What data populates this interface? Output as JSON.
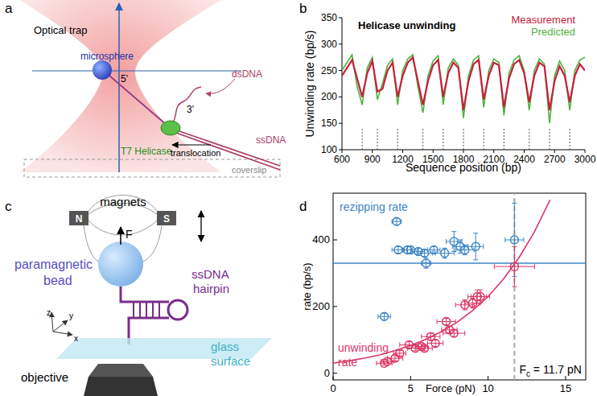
{
  "panel_labels": [
    "a",
    "b",
    "c",
    "d"
  ],
  "diagrams": {
    "a": {
      "optical_trap": "Optical trap",
      "microsphere": "microsphere",
      "five_prime": "5'",
      "three_prime": "3'",
      "dsdna": "dsDNA",
      "ssdna": "ssDNA",
      "helicase": "T7 Helicase",
      "translocation": "translocation",
      "coverslip": "coverslip"
    },
    "c": {
      "magnets": "magnets",
      "north": "N",
      "south": "S",
      "force": "F",
      "bead": [
        "paramagnetic",
        "bead"
      ],
      "hairpin": [
        "ssDNA",
        "hairpin"
      ],
      "axes": [
        "z",
        "y",
        "x"
      ],
      "surface": [
        "glass",
        "surface"
      ],
      "objective": "objective"
    }
  },
  "chart_data": [
    {
      "type": "line",
      "title": "Helicase unwinding",
      "x_label": "Sequence position (bp)",
      "y_label": "Unwinding rate (bp/s)",
      "x": [
        600,
        650,
        700,
        750,
        800,
        850,
        900,
        950,
        1000,
        1050,
        1100,
        1150,
        1200,
        1250,
        1300,
        1350,
        1400,
        1450,
        1500,
        1550,
        1600,
        1650,
        1700,
        1750,
        1800,
        1850,
        1900,
        1950,
        2000,
        2050,
        2100,
        2150,
        2200,
        2250,
        2300,
        2350,
        2400,
        2450,
        2500,
        2550,
        2600,
        2650,
        2700,
        2750,
        2800,
        2850,
        2900,
        2950,
        3000
      ],
      "series": [
        {
          "name": "Measurement",
          "color": "#c8203c",
          "values": [
            240,
            255,
            270,
            235,
            200,
            245,
            268,
            210,
            215,
            250,
            265,
            200,
            240,
            265,
            275,
            230,
            185,
            230,
            260,
            270,
            200,
            245,
            265,
            255,
            175,
            230,
            262,
            270,
            195,
            240,
            265,
            260,
            180,
            235,
            262,
            270,
            245,
            190,
            240,
            265,
            258,
            175,
            230,
            258,
            240,
            190,
            240,
            262,
            250
          ]
        },
        {
          "name": "Predicted",
          "color": "#4db33d",
          "values": [
            250,
            265,
            280,
            220,
            185,
            255,
            275,
            195,
            225,
            260,
            272,
            185,
            250,
            272,
            280,
            220,
            170,
            240,
            268,
            278,
            185,
            255,
            272,
            260,
            160,
            240,
            270,
            278,
            180,
            250,
            272,
            265,
            165,
            245,
            270,
            278,
            250,
            175,
            250,
            272,
            262,
            150,
            240,
            268,
            250,
            175,
            250,
            270,
            275
          ]
        }
      ],
      "dip_markers": [
        800,
        950,
        1150,
        1400,
        1600,
        1800,
        2000,
        2200,
        2450,
        2650,
        2850
      ],
      "xlim": [
        600,
        3000
      ],
      "ylim": [
        100,
        350
      ],
      "xticks": [
        600,
        900,
        1200,
        1500,
        1800,
        2100,
        2400,
        2700,
        3000
      ],
      "yticks": [
        100,
        150,
        200,
        250,
        300,
        350
      ],
      "legend": "top right",
      "grid": false
    },
    {
      "type": "scatter",
      "x_label": "Force (pN)",
      "y_label": "rate (bp/s)",
      "series": [
        {
          "name": "rezipping rate",
          "color": "#3d86c6",
          "marker": "circle",
          "x": [
            3.3,
            4.1,
            4.2,
            4.8,
            5.0,
            5.5,
            5.9,
            6.0,
            6.5,
            7.2,
            7.8,
            8.2,
            8.5,
            9.2,
            11.7
          ],
          "values": [
            170,
            455,
            370,
            370,
            370,
            365,
            360,
            330,
            370,
            360,
            395,
            380,
            370,
            380,
            400
          ],
          "xerr": [
            0.4,
            0.3,
            0.4,
            0.3,
            0.5,
            0.4,
            0.5,
            0.3,
            0.4,
            0.6,
            0.5,
            0.5,
            0.6,
            0.5,
            0.6
          ],
          "yerr": [
            10,
            10,
            10,
            10,
            10,
            10,
            10,
            15,
            10,
            15,
            30,
            20,
            15,
            40,
            110
          ]
        },
        {
          "name": "unwinding rate",
          "color": "#dc3564",
          "marker": "circle",
          "x": [
            3.3,
            3.5,
            4.0,
            4.3,
            4.9,
            5.3,
            5.7,
            5.9,
            6.3,
            6.6,
            7.3,
            7.5,
            7.8,
            8.5,
            9.0,
            9.3,
            9.5,
            11.7
          ],
          "values": [
            30,
            35,
            45,
            60,
            85,
            75,
            80,
            75,
            110,
            90,
            155,
            130,
            120,
            205,
            210,
            230,
            230,
            320
          ],
          "xerr": [
            0.5,
            0.4,
            0.5,
            0.4,
            0.6,
            0.5,
            0.4,
            0.5,
            0.6,
            0.5,
            0.6,
            0.5,
            0.7,
            0.6,
            0.5,
            0.6,
            0.6,
            1.3
          ],
          "yerr": [
            5,
            5,
            8,
            8,
            10,
            8,
            8,
            8,
            10,
            10,
            10,
            10,
            10,
            15,
            15,
            20,
            20,
            60
          ]
        },
        {
          "type": "line",
          "color": "#3d86c6",
          "x": [
            0,
            16.3
          ],
          "values": [
            330,
            330
          ]
        },
        {
          "type": "line",
          "color": "#dc3564",
          "x": [
            0,
            1,
            2,
            3,
            4,
            5,
            6,
            7,
            8,
            9,
            10,
            11,
            12,
            13,
            14
          ],
          "values": [
            30,
            37,
            45,
            55,
            68,
            83,
            102,
            125,
            153,
            188,
            230,
            283,
            347,
            425,
            520
          ]
        }
      ],
      "critical_force": 11.7,
      "annotations": [
        "Fc = 11.7 pN"
      ],
      "xlim": [
        0,
        16.3
      ],
      "ylim": [
        -20,
        540
      ],
      "xticks": [
        0,
        5,
        10,
        15
      ],
      "yticks": [
        0,
        200,
        400
      ],
      "grid": false
    }
  ]
}
